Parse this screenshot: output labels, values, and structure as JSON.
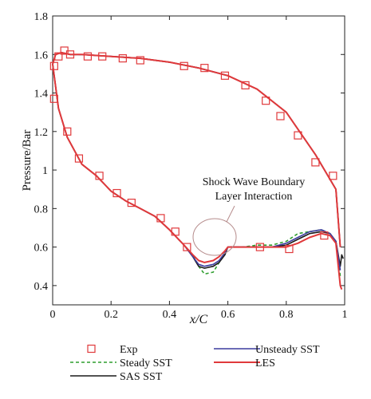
{
  "chart_data": {
    "type": "line",
    "xlabel": "x/C",
    "ylabel": "Pressure/Bar",
    "xlim": [
      0,
      1
    ],
    "ylim": [
      0.3,
      1.8
    ],
    "x_ticks": [
      0,
      0.2,
      0.4,
      0.6,
      0.8,
      1
    ],
    "x_tick_labels": [
      "0",
      "0.2",
      "0.4",
      "0.6",
      "0.8",
      "1"
    ],
    "y_ticks": [
      0.4,
      0.6,
      0.8,
      1.0,
      1.2,
      1.4,
      1.6,
      1.8
    ],
    "y_tick_labels": [
      "0.4",
      "0.6",
      "0.8",
      "1",
      "1.2",
      "1.4",
      "1.6",
      "1.8"
    ],
    "grid": false,
    "legend_placement": "bottom",
    "annotation": {
      "text": [
        "Shock Wave Boundary",
        "Layer Interaction"
      ],
      "target": {
        "x": 0.56,
        "y": 0.55
      }
    },
    "series": [
      {
        "name": "Exp",
        "kind": "marker",
        "color": "#e0393b",
        "upper": {
          "x": [
            0.005,
            0.02,
            0.04,
            0.06,
            0.12,
            0.17,
            0.24,
            0.3,
            0.45,
            0.52,
            0.59,
            0.66,
            0.73,
            0.78,
            0.84,
            0.9,
            0.96
          ],
          "y": [
            1.54,
            1.59,
            1.62,
            1.6,
            1.59,
            1.59,
            1.58,
            1.57,
            1.54,
            1.53,
            1.49,
            1.44,
            1.36,
            1.28,
            1.18,
            1.04,
            0.97
          ]
        },
        "lower": {
          "x": [
            0.005,
            0.05,
            0.09,
            0.16,
            0.22,
            0.27,
            0.37,
            0.42,
            0.46,
            0.71,
            0.81,
            0.93
          ],
          "y": [
            1.37,
            1.2,
            1.06,
            0.97,
            0.88,
            0.83,
            0.75,
            0.68,
            0.6,
            0.6,
            0.59,
            0.66
          ]
        }
      },
      {
        "name": "Steady SST",
        "kind": "dashed",
        "color": "#2e9e2e",
        "upper": {
          "x": [
            0.0,
            0.01,
            0.03,
            0.06,
            0.1,
            0.2,
            0.3,
            0.4,
            0.5,
            0.6,
            0.7,
            0.8,
            0.9,
            0.97,
            0.985
          ],
          "y": [
            1.55,
            1.6,
            1.61,
            1.6,
            1.6,
            1.59,
            1.58,
            1.56,
            1.53,
            1.49,
            1.42,
            1.3,
            1.08,
            0.9,
            0.6
          ]
        },
        "lower": {
          "x": [
            0.0,
            0.02,
            0.05,
            0.1,
            0.15,
            0.2,
            0.25,
            0.3,
            0.35,
            0.4,
            0.45,
            0.48,
            0.5,
            0.52,
            0.55,
            0.57,
            0.59,
            0.6,
            0.65,
            0.7,
            0.75,
            0.8,
            0.84,
            0.88,
            0.92,
            0.95,
            0.97,
            0.985
          ],
          "y": [
            1.55,
            1.32,
            1.17,
            1.03,
            0.97,
            0.89,
            0.84,
            0.8,
            0.76,
            0.69,
            0.61,
            0.56,
            0.5,
            0.46,
            0.47,
            0.52,
            0.57,
            0.6,
            0.6,
            0.61,
            0.61,
            0.63,
            0.67,
            0.68,
            0.69,
            0.67,
            0.62,
            0.45
          ]
        }
      },
      {
        "name": "SAS SST",
        "kind": "solid",
        "color": "#1a1a1a",
        "upper": {
          "x": [
            0.0,
            0.01,
            0.03,
            0.06,
            0.1,
            0.2,
            0.3,
            0.4,
            0.5,
            0.6,
            0.7,
            0.8,
            0.9,
            0.97,
            0.985
          ],
          "y": [
            1.55,
            1.6,
            1.61,
            1.6,
            1.6,
            1.59,
            1.58,
            1.56,
            1.53,
            1.49,
            1.42,
            1.3,
            1.08,
            0.9,
            0.6
          ]
        },
        "lower": {
          "x": [
            0.0,
            0.02,
            0.05,
            0.1,
            0.15,
            0.2,
            0.25,
            0.3,
            0.35,
            0.4,
            0.45,
            0.48,
            0.5,
            0.52,
            0.55,
            0.57,
            0.59,
            0.6,
            0.65,
            0.7,
            0.75,
            0.8,
            0.84,
            0.88,
            0.92,
            0.95,
            0.97,
            0.985,
            0.99,
            0.995
          ],
          "y": [
            1.55,
            1.32,
            1.17,
            1.03,
            0.97,
            0.89,
            0.84,
            0.8,
            0.76,
            0.69,
            0.61,
            0.55,
            0.5,
            0.49,
            0.5,
            0.52,
            0.56,
            0.6,
            0.6,
            0.6,
            0.6,
            0.61,
            0.64,
            0.67,
            0.68,
            0.67,
            0.63,
            0.5,
            0.56,
            0.54
          ]
        }
      },
      {
        "name": "Unsteady SST",
        "kind": "solid",
        "color": "#3b3b9e",
        "upper": {
          "x": [
            0.0,
            0.01,
            0.03,
            0.06,
            0.1,
            0.2,
            0.3,
            0.4,
            0.5,
            0.6,
            0.7,
            0.8,
            0.9,
            0.97,
            0.985
          ],
          "y": [
            1.55,
            1.6,
            1.61,
            1.6,
            1.6,
            1.59,
            1.58,
            1.56,
            1.53,
            1.49,
            1.42,
            1.3,
            1.08,
            0.9,
            0.6
          ]
        },
        "lower": {
          "x": [
            0.0,
            0.02,
            0.05,
            0.1,
            0.15,
            0.2,
            0.25,
            0.3,
            0.35,
            0.4,
            0.45,
            0.48,
            0.5,
            0.52,
            0.55,
            0.57,
            0.59,
            0.6,
            0.65,
            0.7,
            0.75,
            0.8,
            0.84,
            0.88,
            0.92,
            0.95,
            0.97,
            0.985
          ],
          "y": [
            1.55,
            1.32,
            1.17,
            1.03,
            0.97,
            0.89,
            0.84,
            0.8,
            0.76,
            0.69,
            0.61,
            0.55,
            0.51,
            0.5,
            0.51,
            0.53,
            0.57,
            0.6,
            0.6,
            0.6,
            0.6,
            0.62,
            0.65,
            0.68,
            0.69,
            0.67,
            0.63,
            0.48
          ]
        }
      },
      {
        "name": "LES",
        "kind": "solid",
        "color": "#e0393b",
        "upper": {
          "x": [
            0.0,
            0.01,
            0.03,
            0.06,
            0.1,
            0.2,
            0.3,
            0.4,
            0.5,
            0.6,
            0.7,
            0.8,
            0.9,
            0.97,
            0.985
          ],
          "y": [
            1.55,
            1.6,
            1.61,
            1.6,
            1.6,
            1.59,
            1.58,
            1.56,
            1.53,
            1.49,
            1.42,
            1.3,
            1.08,
            0.9,
            0.6
          ]
        },
        "lower": {
          "x": [
            0.0,
            0.02,
            0.05,
            0.1,
            0.15,
            0.2,
            0.25,
            0.3,
            0.35,
            0.4,
            0.45,
            0.48,
            0.5,
            0.52,
            0.55,
            0.57,
            0.59,
            0.6,
            0.65,
            0.7,
            0.75,
            0.8,
            0.84,
            0.88,
            0.92,
            0.95,
            0.97,
            0.985,
            0.99
          ],
          "y": [
            1.55,
            1.32,
            1.17,
            1.03,
            0.97,
            0.89,
            0.84,
            0.8,
            0.76,
            0.69,
            0.61,
            0.56,
            0.53,
            0.52,
            0.53,
            0.55,
            0.58,
            0.6,
            0.6,
            0.6,
            0.6,
            0.6,
            0.62,
            0.65,
            0.67,
            0.66,
            0.62,
            0.4,
            0.38
          ]
        }
      }
    ],
    "legend": [
      {
        "label": "Exp",
        "series": "Exp"
      },
      {
        "label": "Unsteady SST",
        "series": "Unsteady SST"
      },
      {
        "label": "Steady SST",
        "series": "Steady SST"
      },
      {
        "label": "LES",
        "series": "LES"
      },
      {
        "label": "SAS SST",
        "series": "SAS SST"
      }
    ]
  }
}
